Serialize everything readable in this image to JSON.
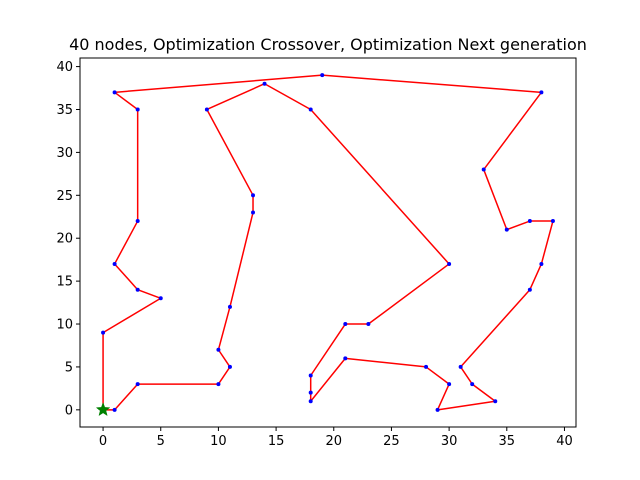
{
  "chart_data": {
    "type": "line",
    "title": "40 nodes, Optimization Crossover, Optimization Next generation",
    "xlabel": "",
    "ylabel": "",
    "xlim": [
      -2,
      41
    ],
    "ylim": [
      -2,
      41
    ],
    "xticks": [
      0,
      5,
      10,
      15,
      20,
      25,
      30,
      35,
      40
    ],
    "yticks": [
      0,
      5,
      10,
      15,
      20,
      25,
      30,
      35,
      40
    ],
    "grid": false,
    "legend": "none",
    "start_node": {
      "x": 0,
      "y": 0,
      "marker": "star",
      "color": "#008000"
    },
    "series": [
      {
        "name": "tour",
        "line_color": "#ff0000",
        "marker_color": "#0000ff",
        "closed": true,
        "x": [
          0,
          0,
          5,
          3,
          1,
          3,
          3,
          1,
          19,
          38,
          33,
          35,
          37,
          39,
          38,
          37,
          31,
          32,
          34,
          29,
          30,
          28,
          21,
          18,
          18,
          18,
          21,
          23,
          30,
          18,
          14,
          9,
          13,
          13,
          11,
          10,
          11,
          10,
          3,
          1
        ],
        "y": [
          0,
          9,
          13,
          14,
          17,
          22,
          35,
          37,
          39,
          37,
          28,
          21,
          22,
          22,
          17,
          14,
          5,
          3,
          1,
          0,
          3,
          5,
          6,
          1,
          2,
          4,
          10,
          10,
          17,
          35,
          38,
          35,
          25,
          23,
          12,
          7,
          5,
          3,
          3,
          0
        ]
      }
    ]
  }
}
